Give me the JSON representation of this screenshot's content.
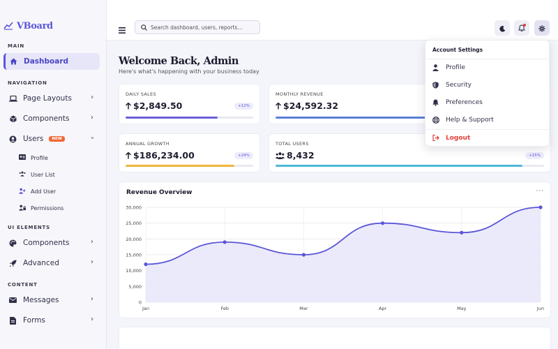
{
  "brand": {
    "name": "VBoard"
  },
  "sidebar": {
    "sections": [
      {
        "label": "MAIN"
      },
      {
        "label": "NAVIGATION"
      },
      {
        "label": "UI ELEMENTS"
      },
      {
        "label": "CONTENT"
      }
    ],
    "items": [
      {
        "label": "Dashboard",
        "icon": "home-icon",
        "active": true
      },
      {
        "label": "Page Layouts",
        "icon": "laptop-icon"
      },
      {
        "label": "Components",
        "icon": "cube-icon"
      },
      {
        "label": "Users",
        "icon": "user-circle-icon",
        "badge": "NEW"
      },
      {
        "label": "Components",
        "icon": "palette-icon"
      },
      {
        "label": "Advanced",
        "icon": "rocket-icon"
      },
      {
        "label": "Messages",
        "icon": "envelope-icon"
      },
      {
        "label": "Forms",
        "icon": "file-icon"
      }
    ],
    "sub_items": [
      {
        "label": "Profile",
        "icon": "id-card-icon"
      },
      {
        "label": "User List",
        "icon": "users-icon"
      },
      {
        "label": "Add User",
        "icon": "user-plus-icon"
      },
      {
        "label": "Permissions",
        "icon": "user-lock-icon"
      }
    ]
  },
  "header": {
    "search_placeholder": "Search dashboard, users, reports..."
  },
  "main": {
    "welcome_title": "Welcome Back, Admin",
    "welcome_subtitle": "Here's what's happening with your business today"
  },
  "stats": [
    {
      "label": "DAILY SALES",
      "value": "$2,849.50",
      "change": "+12%",
      "progress": 0.72,
      "color": "#6a5fd8"
    },
    {
      "label": "MONTHLY REVENUE",
      "value": "$24,592.32",
      "change": "",
      "progress": 0.85,
      "color": "#5a7fd8"
    },
    {
      "label": "ANNUAL GROWTH",
      "value": "$186,234.00",
      "change": "+24%",
      "progress": 0.85,
      "color": "#f0b43c"
    },
    {
      "label": "TOTAL USERS",
      "value": "8,432",
      "change": "+15%",
      "progress": 0.92,
      "color": "#4fb8d8"
    }
  ],
  "chart": {
    "title": "Revenue Overview",
    "more": "···"
  },
  "chart_data": {
    "type": "area",
    "title": "Revenue Overview",
    "xlabel": "",
    "ylabel": "",
    "categories": [
      "Jan",
      "Feb",
      "Mar",
      "Apr",
      "May",
      "Jun"
    ],
    "values": [
      12000,
      19000,
      15000,
      25000,
      22000,
      30000
    ],
    "ylim": [
      0,
      30000
    ],
    "yticks": [
      "0",
      "5,000",
      "10,000",
      "15,000",
      "20,000",
      "25,000",
      "30,000"
    ],
    "grid": true,
    "color": "#5a55d8",
    "fill": "#e8e6fa"
  },
  "dropdown": {
    "title": "Account Settings",
    "items": [
      {
        "label": "Profile",
        "icon": "user-icon"
      },
      {
        "label": "Security",
        "icon": "shield-icon"
      },
      {
        "label": "Preferences",
        "icon": "bell-icon"
      },
      {
        "label": "Help & Support",
        "icon": "lifebuoy-icon"
      },
      {
        "label": "Logout",
        "icon": "sign-out-icon",
        "danger": true
      }
    ]
  }
}
